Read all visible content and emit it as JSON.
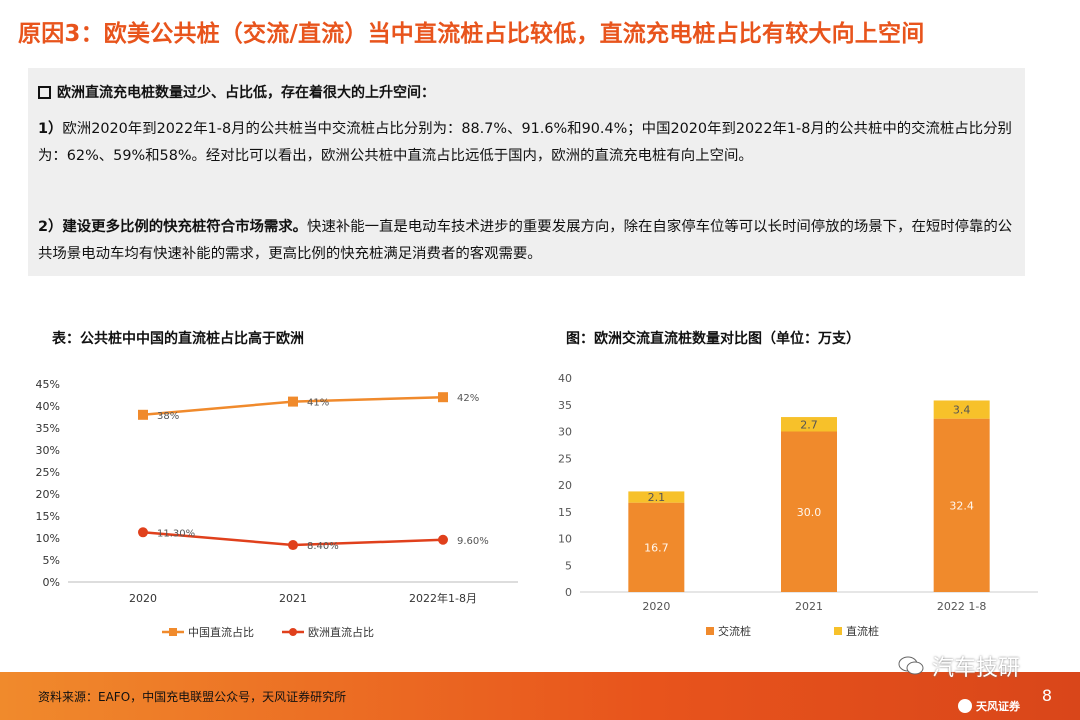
{
  "title": "原因3：欧美公共桩（交流/直流）当中直流桩占比较低，直流充电桩占比有较大向上空间",
  "panel": {
    "heading": "欧洲直流充电桩数量过少、占比低，存在着很大的上升空间：",
    "p1_lead": "1）",
    "p1": "欧洲2020年到2022年1-8月的公共桩当中交流桩占比分别为：88.7%、91.6%和90.4%；中国2020年到2022年1-8月的公共桩中的交流桩占比分别为：62%、59%和58%。经对比可以看出，欧洲公共桩中直流占比远低于国内，欧洲的直流充电桩有向上空间。",
    "p2_lead": "2）建设更多比例的快充桩符合市场需求。",
    "p2": "快速补能一直是电动车技术进步的重要发展方向，除在自家停车位等可以长时间停放的场景下，在短时停靠的公共场景电动车均有快速补能的需求，更高比例的快充桩满足消费者的客观需要。"
  },
  "chart_data": [
    {
      "type": "line",
      "title": "表：公共桩中中国的直流桩占比高于欧洲",
      "categories": [
        "2020",
        "2021",
        "2022年1-8月"
      ],
      "ylim": [
        0,
        45
      ],
      "yticks": [
        "0%",
        "5%",
        "10%",
        "15%",
        "20%",
        "25%",
        "30%",
        "35%",
        "40%",
        "45%"
      ],
      "series": [
        {
          "name": "中国直流占比",
          "values": [
            38,
            41,
            42
          ],
          "labels": [
            "38%",
            "41%",
            "42%"
          ],
          "color": "#f08a2c"
        },
        {
          "name": "欧洲直流占比",
          "values": [
            11.3,
            8.4,
            9.6
          ],
          "labels": [
            "11.30%",
            "8.40%",
            "9.60%"
          ],
          "color": "#e0401c"
        }
      ],
      "legend": "bottom"
    },
    {
      "type": "bar",
      "stacked": true,
      "title": "图：欧洲交流直流桩数量对比图（单位：万支）",
      "categories": [
        "2020",
        "2021",
        "2022 1-8"
      ],
      "ylim": [
        0,
        40
      ],
      "yticks": [
        "0",
        "5",
        "10",
        "15",
        "20",
        "25",
        "30",
        "35",
        "40"
      ],
      "series": [
        {
          "name": "交流桩",
          "values": [
            16.7,
            30.0,
            32.4
          ],
          "labels": [
            "16.7",
            "30.0",
            "32.4"
          ],
          "color": "#f08a2c"
        },
        {
          "name": "直流桩",
          "values": [
            2.1,
            2.7,
            3.4
          ],
          "labels": [
            "2.1",
            "2.7",
            "3.4"
          ],
          "color": "#f7c12a"
        }
      ],
      "legend": "bottom"
    }
  ],
  "footer": {
    "source": "资料来源：EAFO，中国充电联盟公众号，天风证券研究所",
    "brand": "天风证券",
    "page": "8",
    "watermark": "汽车技研"
  }
}
